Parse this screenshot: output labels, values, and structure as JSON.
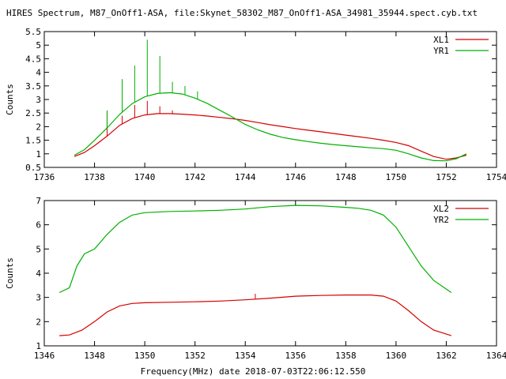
{
  "title": "HIRES Spectrum, M87_OnOff1-ASA, file:Skynet_58302_M87_OnOff1-ASA_34981_35944.spect.cyb.txt",
  "xlabel": "Frequency(MHz) date 2018-07-03T22:06:12.550",
  "colors": {
    "red": "#d40000",
    "green": "#00b000"
  },
  "chart_data": [
    {
      "type": "line",
      "ylabel": "Counts",
      "xlim": [
        1736,
        1754
      ],
      "ylim": [
        0.5,
        5.5
      ],
      "x_ticks": [
        "1736",
        "1738",
        "1740",
        "1742",
        "1744",
        "1746",
        "1748",
        "1750",
        "1752",
        "1754"
      ],
      "y_ticks": [
        "0.5",
        "1",
        "1.5",
        "2",
        "2.5",
        "3",
        "3.5",
        "4",
        "4.5",
        "5",
        "5.5"
      ],
      "legend": "top-right",
      "series": [
        {
          "name": "XL1",
          "color": "#d40000",
          "x": [
            1737.2,
            1737.6,
            1738.0,
            1738.5,
            1739.0,
            1739.5,
            1740.0,
            1740.5,
            1741.0,
            1741.5,
            1742.0,
            1742.5,
            1743.0,
            1743.5,
            1744.0,
            1744.5,
            1745.0,
            1745.5,
            1746.0,
            1746.5,
            1747.0,
            1747.5,
            1748.0,
            1748.5,
            1749.0,
            1749.5,
            1750.0,
            1750.5,
            1751.0,
            1751.5,
            1752.0,
            1752.4,
            1752.8
          ],
          "y": [
            0.9,
            1.05,
            1.3,
            1.65,
            2.05,
            2.3,
            2.43,
            2.48,
            2.48,
            2.46,
            2.43,
            2.39,
            2.34,
            2.29,
            2.23,
            2.15,
            2.07,
            2.0,
            1.93,
            1.87,
            1.81,
            1.75,
            1.69,
            1.63,
            1.57,
            1.5,
            1.42,
            1.3,
            1.1,
            0.9,
            0.8,
            0.85,
            0.95
          ],
          "spikes": [
            {
              "x": 1738.5,
              "y": 2.55
            },
            {
              "x": 1739.1,
              "y": 2.4
            },
            {
              "x": 1739.6,
              "y": 2.8
            },
            {
              "x": 1740.1,
              "y": 2.95
            },
            {
              "x": 1740.6,
              "y": 2.75
            },
            {
              "x": 1741.1,
              "y": 2.6
            }
          ]
        },
        {
          "name": "YR1",
          "color": "#00b000",
          "x": [
            1737.2,
            1737.6,
            1738.0,
            1738.5,
            1739.0,
            1739.5,
            1740.0,
            1740.5,
            1741.0,
            1741.5,
            1742.0,
            1742.5,
            1743.0,
            1743.5,
            1744.0,
            1744.5,
            1745.0,
            1745.5,
            1746.0,
            1746.5,
            1747.0,
            1747.5,
            1748.0,
            1748.5,
            1749.0,
            1749.5,
            1750.0,
            1750.5,
            1751.0,
            1751.5,
            1752.0,
            1752.4,
            1752.8
          ],
          "y": [
            0.95,
            1.15,
            1.5,
            1.95,
            2.45,
            2.85,
            3.1,
            3.22,
            3.25,
            3.2,
            3.05,
            2.85,
            2.6,
            2.35,
            2.08,
            1.88,
            1.72,
            1.6,
            1.52,
            1.45,
            1.39,
            1.34,
            1.3,
            1.26,
            1.22,
            1.19,
            1.13,
            1.0,
            0.85,
            0.75,
            0.74,
            0.82,
            1.0
          ],
          "spikes": [
            {
              "x": 1738.5,
              "y": 2.6
            },
            {
              "x": 1739.1,
              "y": 3.75
            },
            {
              "x": 1739.6,
              "y": 4.25
            },
            {
              "x": 1740.1,
              "y": 5.2
            },
            {
              "x": 1740.6,
              "y": 4.6
            },
            {
              "x": 1741.1,
              "y": 3.65
            },
            {
              "x": 1741.6,
              "y": 3.5
            },
            {
              "x": 1742.1,
              "y": 3.3
            }
          ]
        }
      ]
    },
    {
      "type": "line",
      "ylabel": "Counts",
      "xlim": [
        1346,
        1364
      ],
      "ylim": [
        1,
        7
      ],
      "x_ticks": [
        "1346",
        "1348",
        "1350",
        "1352",
        "1354",
        "1356",
        "1358",
        "1360",
        "1362",
        "1364"
      ],
      "y_ticks": [
        "1",
        "2",
        "3",
        "4",
        "5",
        "6",
        "7"
      ],
      "legend": "top-right",
      "series": [
        {
          "name": "XL2",
          "color": "#d40000",
          "x": [
            1346.6,
            1347.0,
            1347.5,
            1348.0,
            1348.5,
            1349.0,
            1349.5,
            1350.0,
            1351.0,
            1352.0,
            1353.0,
            1354.0,
            1355.0,
            1356.0,
            1357.0,
            1358.0,
            1359.0,
            1359.5,
            1360.0,
            1360.5,
            1361.0,
            1361.5,
            1362.2
          ],
          "y": [
            1.42,
            1.45,
            1.65,
            2.0,
            2.4,
            2.65,
            2.75,
            2.78,
            2.8,
            2.82,
            2.85,
            2.9,
            2.97,
            3.05,
            3.08,
            3.1,
            3.1,
            3.05,
            2.85,
            2.45,
            2.0,
            1.65,
            1.42
          ],
          "spikes": [
            {
              "x": 1354.4,
              "y": 3.15
            }
          ]
        },
        {
          "name": "YR2",
          "color": "#00b000",
          "x": [
            1346.6,
            1347.0,
            1347.3,
            1347.6,
            1348.0,
            1348.5,
            1349.0,
            1349.5,
            1350.0,
            1351.0,
            1352.0,
            1353.0,
            1354.0,
            1355.0,
            1356.0,
            1357.0,
            1358.0,
            1358.5,
            1359.0,
            1359.5,
            1360.0,
            1360.5,
            1361.0,
            1361.5,
            1362.2
          ],
          "y": [
            3.2,
            3.4,
            4.3,
            4.8,
            5.0,
            5.6,
            6.1,
            6.4,
            6.5,
            6.55,
            6.57,
            6.6,
            6.65,
            6.75,
            6.8,
            6.78,
            6.72,
            6.68,
            6.6,
            6.4,
            5.9,
            5.1,
            4.3,
            3.7,
            3.2
          ],
          "spikes": []
        }
      ]
    }
  ]
}
